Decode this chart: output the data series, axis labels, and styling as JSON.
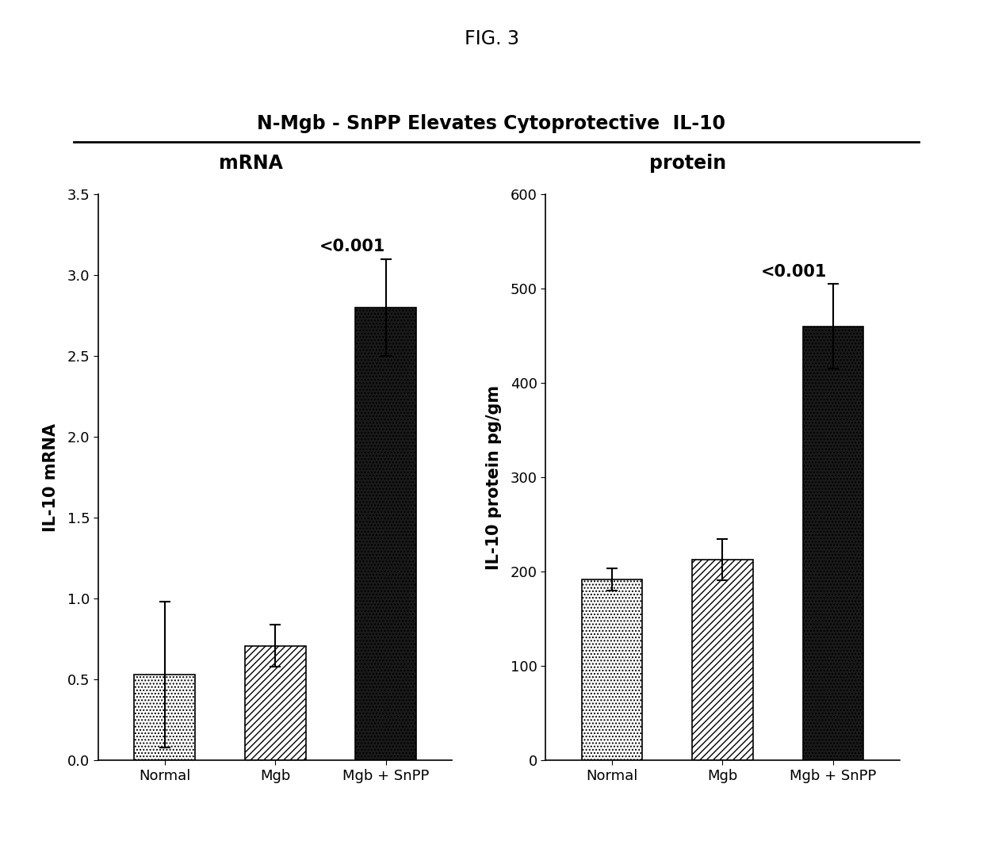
{
  "fig_title": "FIG. 3",
  "chart_title": "N-Mgb - SnPP Elevates Cytoprotective  IL-10",
  "left_panel_label": "mRNA",
  "right_panel_label": "protein",
  "categories": [
    "Normal",
    "Mgb",
    "Mgb + SnPP"
  ],
  "mrna_values": [
    0.53,
    0.71,
    2.8
  ],
  "mrna_errors": [
    0.45,
    0.13,
    0.3
  ],
  "mrna_ylim": [
    0.0,
    3.5
  ],
  "mrna_yticks": [
    0.0,
    0.5,
    1.0,
    1.5,
    2.0,
    2.5,
    3.0,
    3.5
  ],
  "mrna_ylabel": "IL-10 mRNA",
  "protein_values": [
    192,
    213,
    460
  ],
  "protein_errors": [
    12,
    22,
    45
  ],
  "protein_ylim": [
    0,
    600
  ],
  "protein_yticks": [
    0,
    100,
    200,
    300,
    400,
    500,
    600
  ],
  "protein_ylabel": "IL-10 protein pg/gm",
  "mrna_annotation": "<0.001",
  "protein_annotation": "<0.001",
  "background_color": "#ffffff",
  "bar_edge_color": "#000000",
  "annotation_fontsize": 15,
  "label_fontsize": 15,
  "title_fontsize": 17,
  "tick_fontsize": 13,
  "panel_label_fontsize": 17,
  "fig_title_fontsize": 17
}
